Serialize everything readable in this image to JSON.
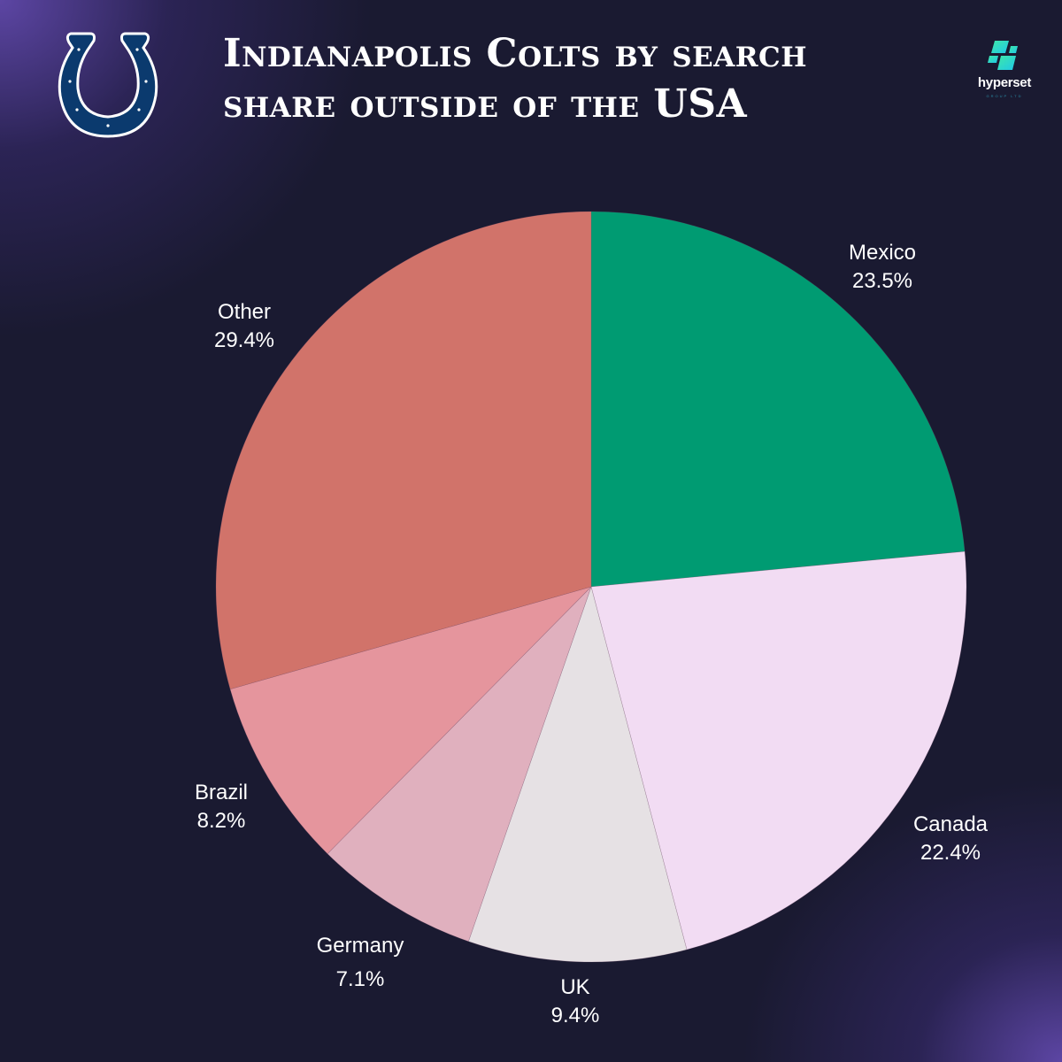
{
  "header": {
    "title_line1": "Indianapolis Colts by search",
    "title_line2": "share outside of the USA",
    "team_logo": "horseshoe-logo-icon",
    "brand": {
      "name": "hyperset",
      "sub": "GROUP LTD",
      "icon": "hyperset-logo-icon"
    }
  },
  "colors": {
    "background": "#1a1a31",
    "Mexico": "#009b72",
    "Canada": "#f2dcf3",
    "UK": "#e6e1e4",
    "Germany": "#e0b0be",
    "Brazil": "#e5959d",
    "Other": "#d1736a"
  },
  "chart_data": {
    "type": "pie",
    "title": "Indianapolis Colts by search share outside of the USA",
    "categories": [
      "Mexico",
      "Canada",
      "UK",
      "Germany",
      "Brazil",
      "Other"
    ],
    "values": [
      23.5,
      22.4,
      9.4,
      7.1,
      8.2,
      29.4
    ],
    "labels": [
      "23.5%",
      "22.4%",
      "9.4%",
      "7.1%",
      "8.2%",
      "29.4%"
    ],
    "start_angle": "12 o'clock, clockwise",
    "legend": "none (labels outside slices)"
  }
}
